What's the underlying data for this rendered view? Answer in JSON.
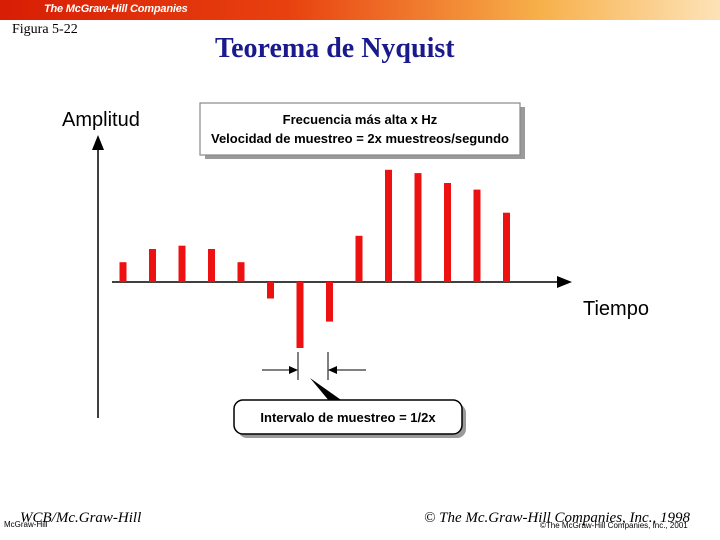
{
  "header": {
    "logo_text": "The McGraw-Hill Companies",
    "colors": {
      "banner_start": "#d81e05",
      "banner_end": "#fde3b8"
    }
  },
  "slide": {
    "figure_label": "Figura 5-22",
    "title": "Teorema de Nyquist",
    "title_color": "#1a1a8c"
  },
  "diagram": {
    "y_axis_label": "Amplitud",
    "x_axis_label": "Tiempo",
    "info_box_line1": "Frecuencia más alta x Hz",
    "info_box_line2": "Velocidad de muestreo = 2x muestreos/segundo",
    "interval_label": "Intervalo de muestreo = 1/2x",
    "sample_color": "#ee1111",
    "samples": [
      0.3,
      0.5,
      0.55,
      0.5,
      0.3,
      -0.25,
      -1.0,
      -0.6,
      0.7,
      1.7,
      1.65,
      1.5,
      1.4,
      1.05
    ]
  },
  "footer": {
    "left": "WCB/Mc.Graw-Hill",
    "left_small": "McGraw-Hill",
    "right": "© The Mc.Graw-Hill Companies, Inc., 1998",
    "right_small": "©The McGraw-Hill Companies, Inc., 2001"
  }
}
